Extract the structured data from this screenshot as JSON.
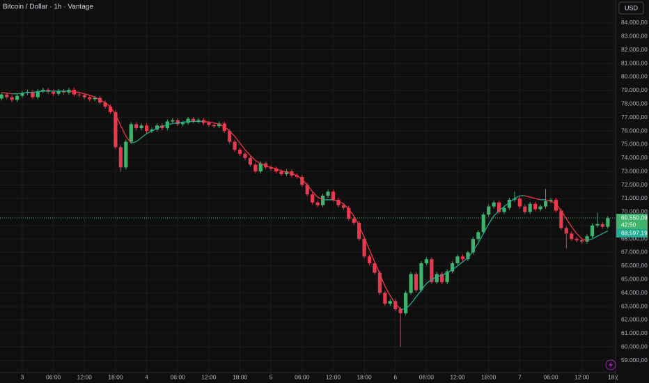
{
  "chart_data": {
    "type": "candlestick",
    "title": "Bitcoin / Dollar · 1h · Vantage",
    "currency": "USD",
    "up_color": "#3fb36c",
    "down_color": "#e8394f",
    "grid": true,
    "xlim": [
      -4.3,
      114.5
    ],
    "ylim": [
      58100,
      85700
    ],
    "xticks": [
      {
        "value": 0,
        "label": "3"
      },
      {
        "value": 6,
        "label": "06:00"
      },
      {
        "value": 12,
        "label": "12:00"
      },
      {
        "value": 18,
        "label": "18:00"
      },
      {
        "value": 24,
        "label": "4"
      },
      {
        "value": 30,
        "label": "06:00"
      },
      {
        "value": 36,
        "label": "12:00"
      },
      {
        "value": 42,
        "label": "18:00"
      },
      {
        "value": 48,
        "label": "5"
      },
      {
        "value": 54,
        "label": "06:00"
      },
      {
        "value": 60,
        "label": "12:00"
      },
      {
        "value": 66,
        "label": "18:00"
      },
      {
        "value": 72,
        "label": "6"
      },
      {
        "value": 78,
        "label": "06:00"
      },
      {
        "value": 84,
        "label": "12:00"
      },
      {
        "value": 90,
        "label": "18:00"
      },
      {
        "value": 96,
        "label": "7"
      },
      {
        "value": 102,
        "label": "06:00"
      },
      {
        "value": 108,
        "label": "12:00"
      },
      {
        "value": 114,
        "label": "18:("
      }
    ],
    "yticks": [
      {
        "value": 59000,
        "label": "59.000,00"
      },
      {
        "value": 60000,
        "label": "60.000,00"
      },
      {
        "value": 61000,
        "label": "61.000,00"
      },
      {
        "value": 62000,
        "label": "62.000,00"
      },
      {
        "value": 63000,
        "label": "63.000,00"
      },
      {
        "value": 64000,
        "label": "64.000,00"
      },
      {
        "value": 65000,
        "label": "65.000,00"
      },
      {
        "value": 66000,
        "label": "66.000,00"
      },
      {
        "value": 67000,
        "label": "67.000,00"
      },
      {
        "value": 68000,
        "label": "68.000,00"
      },
      {
        "value": 69000,
        "label": "69.000,00"
      },
      {
        "value": 70000,
        "label": "70.000,00"
      },
      {
        "value": 71000,
        "label": "71.000,00"
      },
      {
        "value": 72000,
        "label": "72.000,00"
      },
      {
        "value": 73000,
        "label": "73.000,00"
      },
      {
        "value": 74000,
        "label": "74.000,00"
      },
      {
        "value": 75000,
        "label": "75.000,00"
      },
      {
        "value": 76000,
        "label": "76.000,00"
      },
      {
        "value": 77000,
        "label": "77.000,00"
      },
      {
        "value": 78000,
        "label": "78.000,00"
      },
      {
        "value": 79000,
        "label": "79.000,00"
      },
      {
        "value": 80000,
        "label": "80.000,00"
      },
      {
        "value": 81000,
        "label": "81.000,00"
      },
      {
        "value": 82000,
        "label": "82.000,00"
      },
      {
        "value": 83000,
        "label": "83.000,00"
      },
      {
        "value": 84000,
        "label": "84.000,00"
      }
    ],
    "x": [
      -4,
      -3,
      -2,
      -1,
      0,
      1,
      2,
      3,
      4,
      5,
      6,
      7,
      8,
      9,
      10,
      11,
      12,
      13,
      14,
      15,
      16,
      17,
      18,
      19,
      20,
      21,
      22,
      23,
      24,
      25,
      26,
      27,
      28,
      29,
      30,
      31,
      32,
      33,
      34,
      35,
      36,
      37,
      38,
      39,
      40,
      41,
      42,
      43,
      44,
      45,
      46,
      47,
      48,
      49,
      50,
      51,
      52,
      53,
      54,
      55,
      56,
      57,
      58,
      59,
      60,
      61,
      62,
      63,
      64,
      65,
      66,
      67,
      68,
      69,
      70,
      71,
      72,
      73,
      74,
      75,
      76,
      77,
      78,
      79,
      80,
      81,
      82,
      83,
      84,
      85,
      86,
      87,
      88,
      89,
      90,
      91,
      92,
      93,
      94,
      95,
      96,
      97,
      98,
      99,
      100,
      101,
      102,
      103,
      104,
      105,
      106,
      107,
      108,
      109,
      110,
      111,
      112,
      113
    ],
    "ohlc": [
      [
        78400,
        78850,
        78250,
        78700
      ],
      [
        78700,
        78850,
        78350,
        78500
      ],
      [
        78500,
        78650,
        78150,
        78300
      ],
      [
        78300,
        78750,
        78150,
        78600
      ],
      [
        78600,
        78950,
        78450,
        78800
      ],
      [
        78800,
        79050,
        78650,
        78900
      ],
      [
        78900,
        79050,
        78350,
        78500
      ],
      [
        78500,
        79100,
        78350,
        78950
      ],
      [
        78950,
        79200,
        78800,
        79050
      ],
      [
        79050,
        79200,
        78750,
        78900
      ],
      [
        78900,
        79050,
        78600,
        78750
      ],
      [
        78750,
        79100,
        78600,
        78950
      ],
      [
        78950,
        79100,
        78700,
        78850
      ],
      [
        78850,
        79200,
        78700,
        79050
      ],
      [
        79050,
        79200,
        78550,
        78700
      ],
      [
        78700,
        78850,
        78500,
        78650
      ],
      [
        78650,
        78800,
        78350,
        78500
      ],
      [
        78500,
        78650,
        78200,
        78350
      ],
      [
        78350,
        78600,
        78200,
        78450
      ],
      [
        78450,
        78600,
        77950,
        78100
      ],
      [
        78100,
        78250,
        77650,
        77800
      ],
      [
        77800,
        77950,
        77250,
        77400
      ],
      [
        77400,
        77550,
        74650,
        74800
      ],
      [
        74800,
        74950,
        73000,
        73300
      ],
      [
        73300,
        75350,
        73150,
        75200
      ],
      [
        75200,
        76650,
        75050,
        76500
      ],
      [
        76500,
        76650,
        76050,
        76200
      ],
      [
        76200,
        76550,
        76050,
        76400
      ],
      [
        76400,
        76550,
        75850,
        76000
      ],
      [
        76000,
        76250,
        75850,
        76100
      ],
      [
        76100,
        76550,
        75950,
        76400
      ],
      [
        76400,
        76550,
        76050,
        76200
      ],
      [
        76200,
        76850,
        76050,
        76700
      ],
      [
        76700,
        76950,
        76550,
        76800
      ],
      [
        76800,
        76950,
        76350,
        76500
      ],
      [
        76500,
        76750,
        76350,
        76600
      ],
      [
        76600,
        77050,
        76450,
        76900
      ],
      [
        76900,
        77050,
        76550,
        76700
      ],
      [
        76700,
        76950,
        76550,
        76800
      ],
      [
        76800,
        76950,
        76450,
        76600
      ],
      [
        76600,
        76750,
        76300,
        76450
      ],
      [
        76450,
        76600,
        76200,
        76350
      ],
      [
        76350,
        76700,
        76200,
        76550
      ],
      [
        76550,
        76700,
        75850,
        76000
      ],
      [
        76000,
        76150,
        75050,
        75200
      ],
      [
        75200,
        75350,
        74450,
        74600
      ],
      [
        74600,
        74750,
        74150,
        74300
      ],
      [
        74300,
        74450,
        73850,
        74000
      ],
      [
        74000,
        74150,
        73350,
        73500
      ],
      [
        73500,
        73650,
        72850,
        73000
      ],
      [
        73000,
        73750,
        72850,
        73600
      ],
      [
        73600,
        73750,
        73150,
        73300
      ],
      [
        73300,
        73450,
        73050,
        73200
      ],
      [
        73200,
        73350,
        72850,
        73000
      ],
      [
        73000,
        73150,
        72650,
        72800
      ],
      [
        72800,
        73150,
        72650,
        73000
      ],
      [
        73000,
        73150,
        72550,
        72700
      ],
      [
        72700,
        72850,
        72450,
        72600
      ],
      [
        72600,
        72750,
        71850,
        72000
      ],
      [
        72000,
        72150,
        71150,
        71300
      ],
      [
        71300,
        71450,
        70550,
        70700
      ],
      [
        70700,
        70850,
        70350,
        70500
      ],
      [
        70500,
        71350,
        70350,
        71200
      ],
      [
        71200,
        71650,
        71050,
        71500
      ],
      [
        71500,
        71650,
        70750,
        70900
      ],
      [
        70900,
        71050,
        70350,
        70500
      ],
      [
        70500,
        70650,
        70150,
        70300
      ],
      [
        70300,
        70450,
        69350,
        69500
      ],
      [
        69500,
        69650,
        69050,
        69200
      ],
      [
        69200,
        69350,
        67850,
        68000
      ],
      [
        68000,
        68150,
        66550,
        66700
      ],
      [
        66700,
        66850,
        66050,
        66200
      ],
      [
        66200,
        66350,
        65350,
        65500
      ],
      [
        65500,
        65650,
        63850,
        64000
      ],
      [
        64000,
        64150,
        63050,
        63200
      ],
      [
        63200,
        63550,
        63050,
        63400
      ],
      [
        63400,
        63550,
        62650,
        62800
      ],
      [
        62800,
        62950,
        60000,
        62500
      ],
      [
        62500,
        64150,
        62350,
        64000
      ],
      [
        64000,
        65550,
        63850,
        65400
      ],
      [
        65400,
        65550,
        64050,
        64200
      ],
      [
        64200,
        66350,
        64050,
        66200
      ],
      [
        66200,
        66650,
        66050,
        66500
      ],
      [
        66500,
        66650,
        64650,
        64800
      ],
      [
        64800,
        65550,
        64650,
        65400
      ],
      [
        65400,
        65550,
        64650,
        64800
      ],
      [
        64800,
        65750,
        64650,
        65600
      ],
      [
        65600,
        66350,
        65450,
        66200
      ],
      [
        66200,
        66850,
        66050,
        66700
      ],
      [
        66700,
        66850,
        66350,
        66500
      ],
      [
        66500,
        67150,
        66350,
        67000
      ],
      [
        67000,
        68150,
        66850,
        68000
      ],
      [
        68000,
        68650,
        67850,
        68500
      ],
      [
        68500,
        69950,
        68350,
        69800
      ],
      [
        69800,
        70550,
        69650,
        70400
      ],
      [
        70400,
        70850,
        70250,
        70700
      ],
      [
        70700,
        70850,
        69850,
        70000
      ],
      [
        70000,
        70450,
        69850,
        70300
      ],
      [
        70300,
        71050,
        70150,
        70900
      ],
      [
        70900,
        71500,
        70750,
        71000
      ],
      [
        71000,
        71150,
        70250,
        70400
      ],
      [
        70400,
        70550,
        69850,
        70000
      ],
      [
        70000,
        70750,
        69850,
        70600
      ],
      [
        70600,
        70750,
        70050,
        70200
      ],
      [
        70200,
        70550,
        70050,
        70400
      ],
      [
        70400,
        71700,
        70250,
        70800
      ],
      [
        70800,
        71050,
        70650,
        70900
      ],
      [
        70900,
        71050,
        69950,
        70100
      ],
      [
        70100,
        70250,
        68650,
        68800
      ],
      [
        68800,
        68950,
        67300,
        68400
      ],
      [
        68400,
        68550,
        67850,
        68000
      ],
      [
        68000,
        68150,
        67750,
        67900
      ],
      [
        67900,
        68050,
        67650,
        67800
      ],
      [
        67800,
        68350,
        67650,
        68200
      ],
      [
        68200,
        69150,
        68050,
        69000
      ],
      [
        69000,
        69950,
        68850,
        69100
      ],
      [
        69100,
        69250,
        68750,
        68900
      ],
      [
        68900,
        69700,
        68750,
        69550
      ]
    ],
    "ma": {
      "rising_color": "#22ab94",
      "falling_color": "#f23645",
      "values": [
        78850,
        78800,
        78750,
        78750,
        78800,
        78850,
        78850,
        78900,
        78950,
        78950,
        78950,
        78950,
        78950,
        78950,
        78900,
        78850,
        78750,
        78650,
        78500,
        78300,
        78100,
        77800,
        77200,
        76400,
        75600,
        75100,
        75200,
        75500,
        75800,
        76000,
        76200,
        76350,
        76450,
        76550,
        76600,
        76650,
        76700,
        76700,
        76700,
        76700,
        76650,
        76600,
        76500,
        76300,
        76000,
        75600,
        75100,
        74600,
        74200,
        73800,
        73600,
        73400,
        73300,
        73200,
        73050,
        72950,
        72850,
        72700,
        72400,
        72000,
        71500,
        71100,
        70900,
        70900,
        70900,
        70800,
        70600,
        70200,
        69700,
        69000,
        68100,
        67200,
        66300,
        65400,
        64500,
        63800,
        63200,
        62800,
        62800,
        63200,
        63700,
        64200,
        64700,
        65000,
        65200,
        65300,
        65500,
        65700,
        66000,
        66300,
        66600,
        67100,
        67700,
        68400,
        69100,
        69700,
        70100,
        70400,
        70700,
        71000,
        71200,
        71200,
        71100,
        71000,
        70900,
        70900,
        70800,
        70600,
        70100,
        69500,
        68900,
        68400,
        68000,
        67900,
        68000,
        68200,
        68400,
        68597.19
      ],
      "last_label": {
        "value": 68597.19,
        "label": "68.597,19"
      }
    },
    "last_price": {
      "value": 69550.09,
      "label": "69.550,09"
    },
    "countdown": "42:50"
  }
}
